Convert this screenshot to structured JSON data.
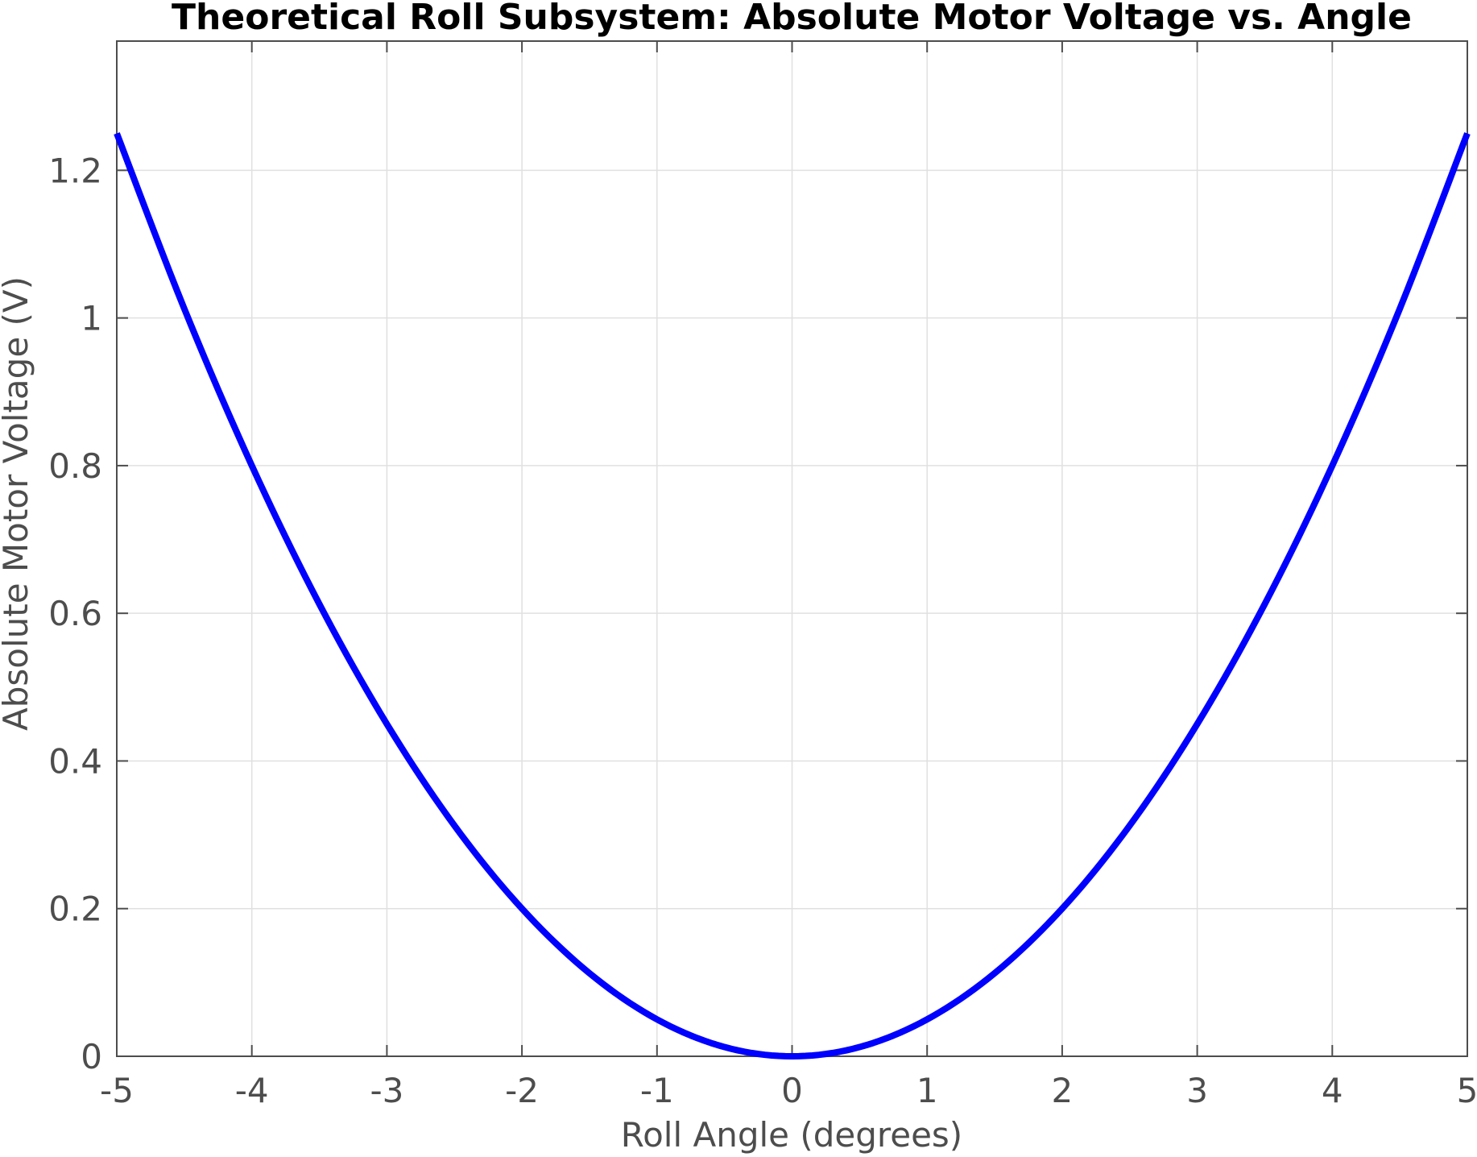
{
  "chart_data": {
    "type": "line",
    "title": "Theoretical Roll Subsystem: Absolute Motor Voltage vs. Angle",
    "xlabel": "Roll Angle (degrees)",
    "ylabel": "Absolute Motor Voltage (V)",
    "xlim": [
      -5,
      5
    ],
    "ylim": [
      0,
      1.375
    ],
    "xticks": [
      -5,
      -4,
      -3,
      -2,
      -1,
      0,
      1,
      2,
      3,
      4,
      5
    ],
    "xtick_labels": [
      "-5",
      "-4",
      "-3",
      "-2",
      "-1",
      "0",
      "1",
      "2",
      "3",
      "4",
      "5"
    ],
    "yticks": [
      0,
      0.2,
      0.4,
      0.6,
      0.8,
      1,
      1.2
    ],
    "ytick_labels": [
      "0",
      "0.2",
      "0.4",
      "0.6",
      "0.8",
      "1",
      "1.2"
    ],
    "grid": true,
    "series": [
      {
        "color": "#0000ff",
        "x": [
          -5,
          -4.5,
          -4,
          -3.5,
          -3,
          -2.5,
          -2,
          -1.5,
          -1,
          -0.5,
          0,
          0.5,
          1,
          1.5,
          2,
          2.5,
          3,
          3.5,
          4,
          4.5,
          5
        ],
        "y": [
          1.25,
          1.0125,
          0.8,
          0.6125,
          0.45,
          0.3125,
          0.2,
          0.1125,
          0.05,
          0.0125,
          0,
          0.0125,
          0.05,
          0.1125,
          0.2,
          0.3125,
          0.45,
          0.6125,
          0.8,
          1.0125,
          1.25
        ]
      }
    ]
  },
  "colors": {
    "axis": "#4d4d4d",
    "grid": "#e0e0e0",
    "line": "#0000ff"
  }
}
